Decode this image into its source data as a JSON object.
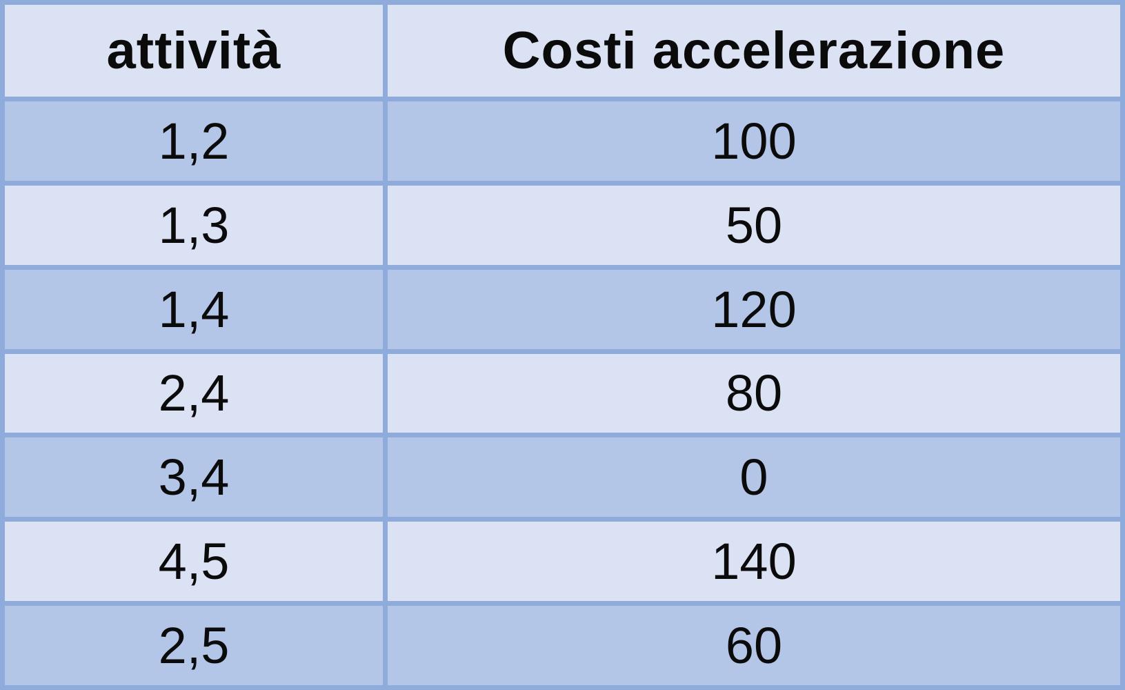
{
  "table": {
    "headers": [
      "attività",
      "Costi accelerazione"
    ],
    "rows": [
      [
        "1,2",
        "100"
      ],
      [
        "1,3",
        "50"
      ],
      [
        "1,4",
        "120"
      ],
      [
        "2,4",
        "80"
      ],
      [
        "3,4",
        "0"
      ],
      [
        "4,5",
        "140"
      ],
      [
        "2,5",
        "60"
      ]
    ]
  },
  "colors": {
    "border": "#8eabdc",
    "header_bg": "#dbe2f3",
    "row_dark": "#b3c6e7",
    "row_light": "#dbe2f3",
    "text": "#0b0b0b"
  }
}
